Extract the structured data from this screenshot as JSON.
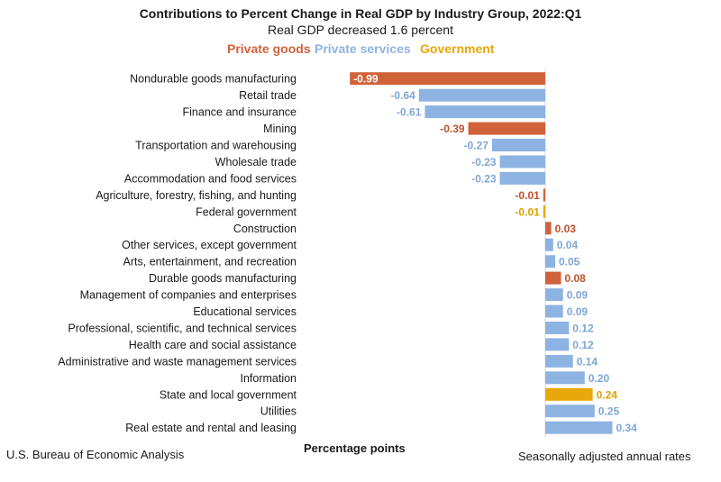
{
  "chart_data": {
    "type": "bar",
    "orientation": "horizontal",
    "title": "Contributions to Percent Change in Real GDP by Industry Group, 2022:Q1",
    "subtitle": "Real GDP decreased 1.6 percent",
    "xlabel": "Percentage points",
    "ylabel": "",
    "xlim": [
      -1.0,
      0.35
    ],
    "legend": [
      {
        "key": "private_goods",
        "label": "Private goods",
        "color": "#d0623a"
      },
      {
        "key": "private_services",
        "label": "Private services",
        "color": "#8db3e2"
      },
      {
        "key": "government",
        "label": "Government",
        "color": "#e8a70a"
      }
    ],
    "value_label_colors": {
      "private_goods": "#c0502a",
      "private_services": "#7fa6d6",
      "government": "#e0a000"
    },
    "categories": [
      "Nondurable goods manufacturing",
      "Retail trade",
      "Finance and insurance",
      "Mining",
      "Transportation and warehousing",
      "Wholesale trade",
      "Accommodation and food services",
      "Agriculture, forestry, fishing, and hunting",
      "Federal government",
      "Construction",
      "Other services, except government",
      "Arts, entertainment, and recreation",
      "Durable goods manufacturing",
      "Management of companies and enterprises",
      "Educational services",
      "Professional, scientific, and technical services",
      "Health care and social assistance",
      "Administrative and waste management services",
      "Information",
      "State and local government",
      "Utilities",
      "Real estate and rental and leasing"
    ],
    "values": [
      -0.99,
      -0.64,
      -0.61,
      -0.39,
      -0.27,
      -0.23,
      -0.23,
      -0.01,
      -0.01,
      0.03,
      0.04,
      0.05,
      0.08,
      0.09,
      0.09,
      0.12,
      0.12,
      0.14,
      0.2,
      0.24,
      0.25,
      0.34
    ],
    "value_labels": [
      "-0.99",
      "-0.64",
      "-0.61",
      "-0.39",
      "-0.27",
      "-0.23",
      "-0.23",
      "-0.01",
      "-0.01",
      "0.03",
      "0.04",
      "0.05",
      "0.08",
      "0.09",
      "0.09",
      "0.12",
      "0.12",
      "0.14",
      "0.20",
      "0.24",
      "0.25",
      "0.34"
    ],
    "groups": [
      "private_goods",
      "private_services",
      "private_services",
      "private_goods",
      "private_services",
      "private_services",
      "private_services",
      "private_goods",
      "government",
      "private_goods",
      "private_services",
      "private_services",
      "private_goods",
      "private_services",
      "private_services",
      "private_services",
      "private_services",
      "private_services",
      "private_services",
      "government",
      "private_services",
      "private_services"
    ]
  },
  "footer": {
    "source": "U.S. Bureau of Economic Analysis",
    "axis_label": "Percentage points",
    "note": "Seasonally adjusted annual rates"
  }
}
